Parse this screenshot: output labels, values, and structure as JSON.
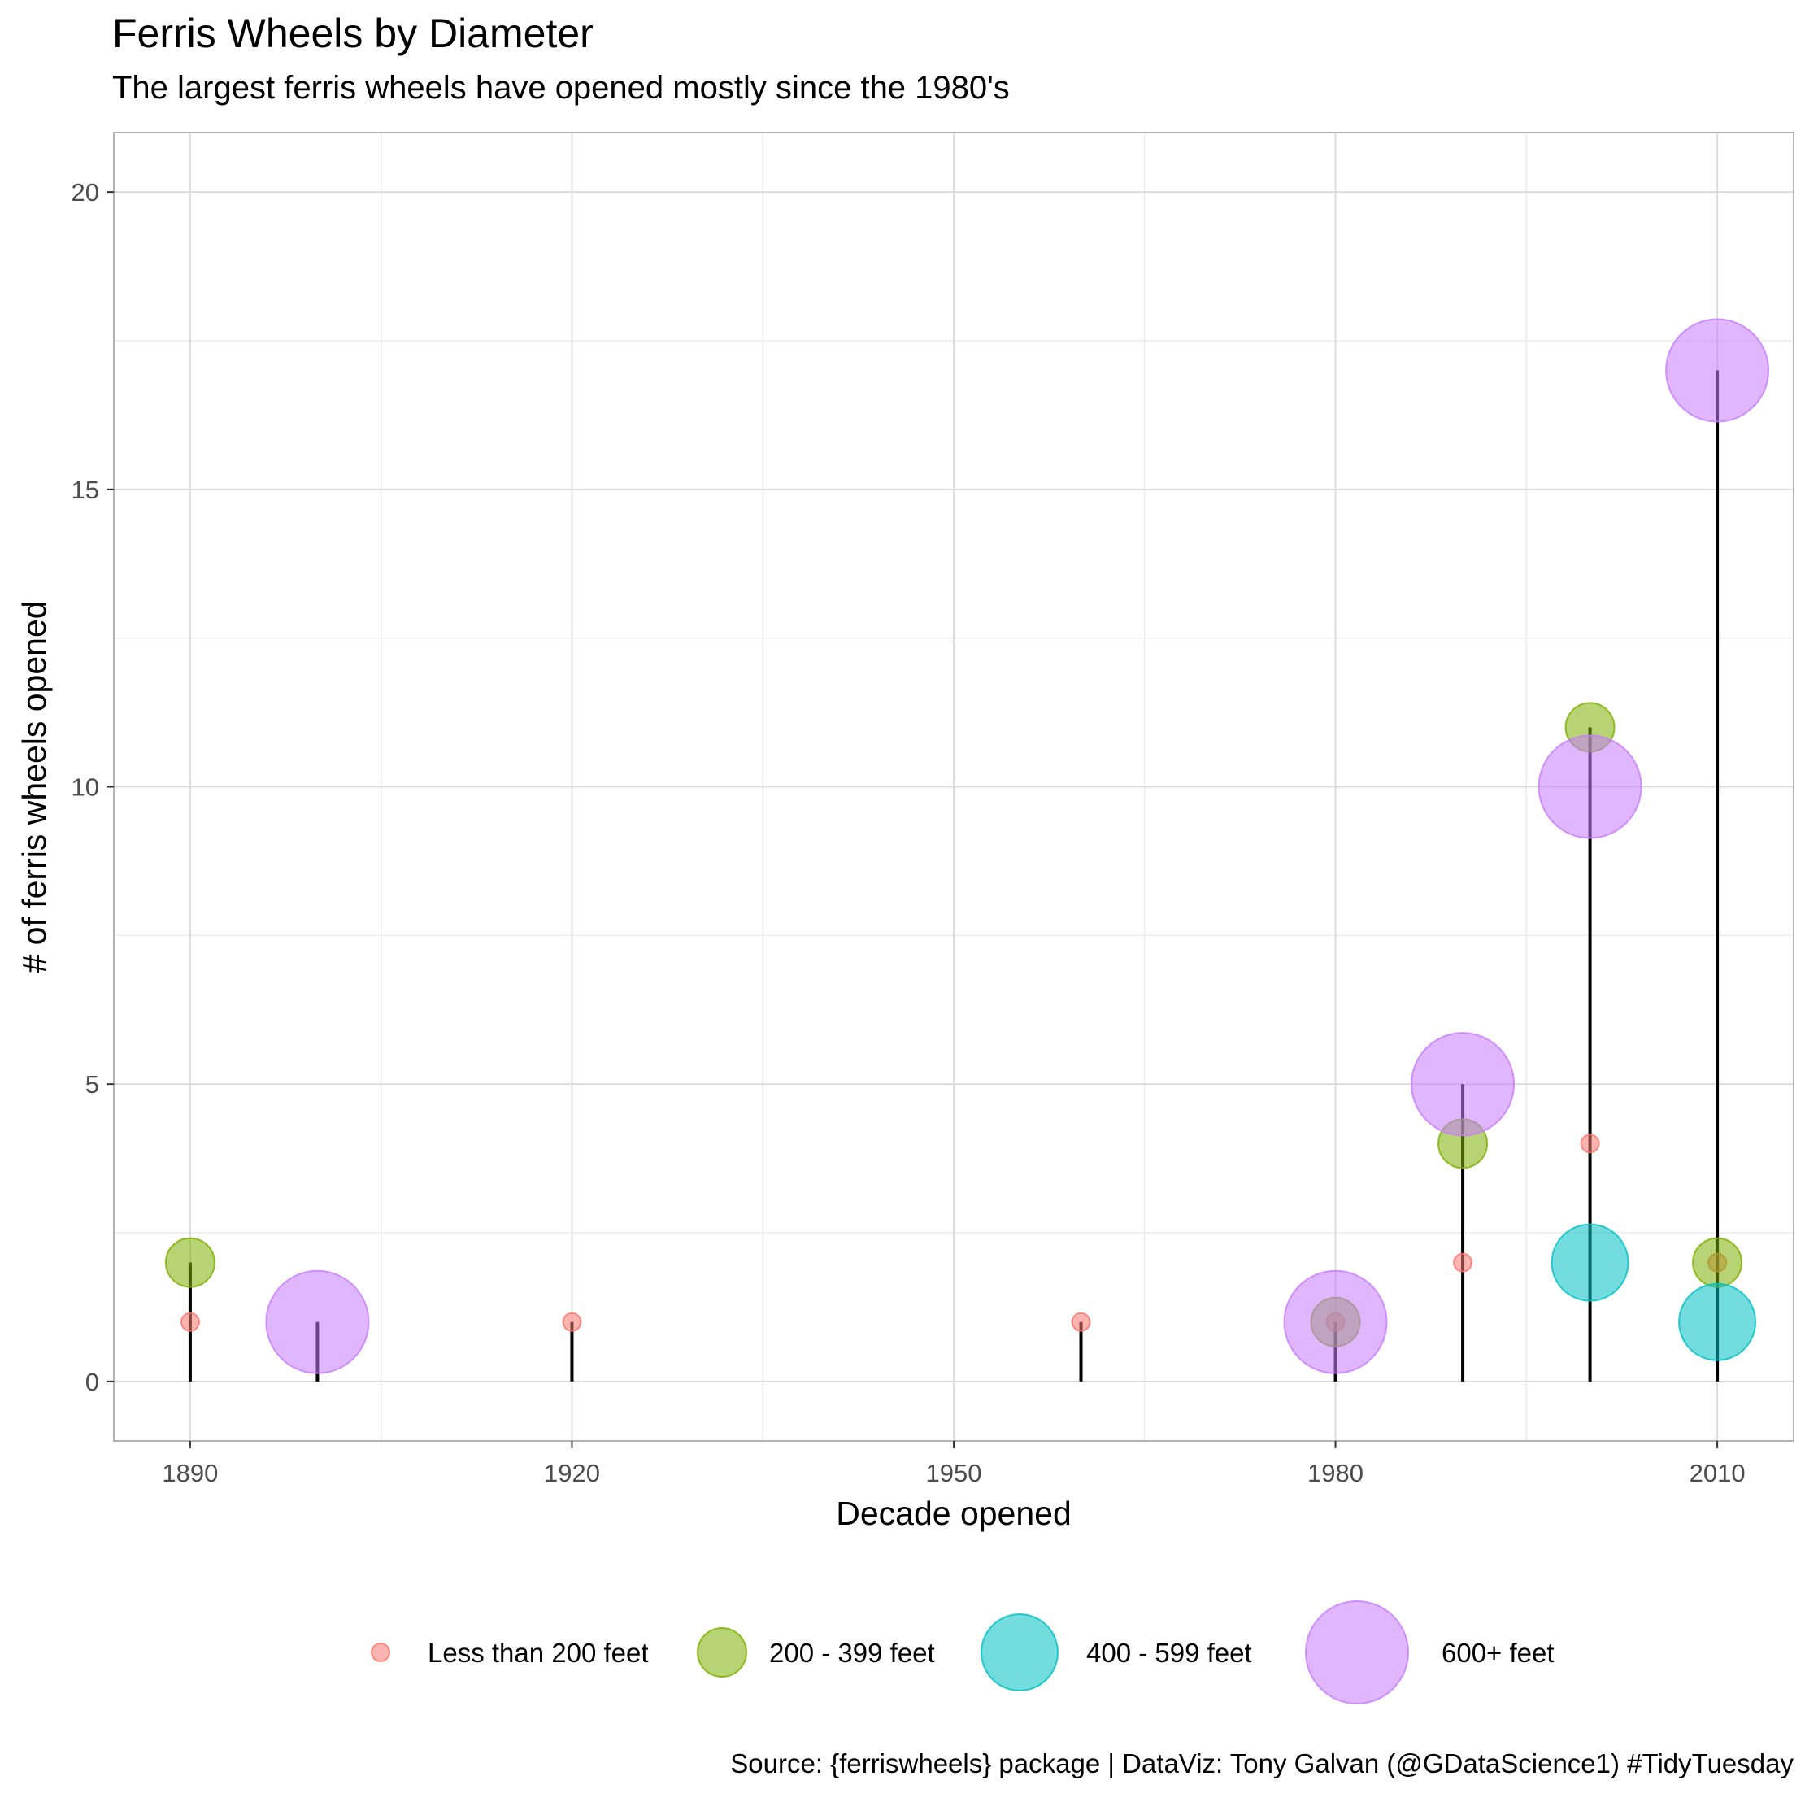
{
  "title": "Ferris Wheels by Diameter",
  "subtitle": "The largest ferris wheels have opened mostly since the 1980's",
  "caption": "Source: {ferriswheels} package  |  DataViz: Tony Galvan (@GDataScience1) #TidyTuesday",
  "colors": {
    "Less than 200 feet": "#F8766D",
    "200 - 399 feet": "#7CAE00",
    "400 - 599 feet": "#00BFC4",
    "600+ feet": "#C77CFF",
    "stem": "#000000",
    "grid_major": "#dcdcdc",
    "grid_minor": "#ececec",
    "panel_border": "#b3b3b3"
  },
  "chart_data": {
    "type": "scatter",
    "title": "Ferris Wheels by Diameter",
    "subtitle": "The largest ferris wheels have opened mostly since the 1980's",
    "xlabel": "Decade opened",
    "ylabel": "# of ferris wheels opened",
    "xlim": [
      1884,
      2016
    ],
    "ylim": [
      -1,
      21
    ],
    "x_ticks": [
      1890,
      1920,
      1950,
      1980,
      2010
    ],
    "y_ticks": [
      0,
      5,
      10,
      15,
      20
    ],
    "grid": true,
    "legend_position": "bottom",
    "legend": [
      "Less than 200 feet",
      "200 - 399 feet",
      "400 - 599 feet",
      "600+ feet"
    ],
    "stems": [
      {
        "x": 1890,
        "y": 2
      },
      {
        "x": 1900,
        "y": 1
      },
      {
        "x": 1920,
        "y": 1
      },
      {
        "x": 1960,
        "y": 1
      },
      {
        "x": 1980,
        "y": 1
      },
      {
        "x": 1990,
        "y": 5
      },
      {
        "x": 2000,
        "y": 11
      },
      {
        "x": 2010,
        "y": 17
      }
    ],
    "series": [
      {
        "name": "Less than 200 feet",
        "points": [
          {
            "x": 1890,
            "y": 1
          },
          {
            "x": 1920,
            "y": 1
          },
          {
            "x": 1960,
            "y": 1
          },
          {
            "x": 1980,
            "y": 1
          },
          {
            "x": 1990,
            "y": 2
          },
          {
            "x": 2000,
            "y": 4
          },
          {
            "x": 2010,
            "y": 2
          }
        ]
      },
      {
        "name": "200 - 399 feet",
        "points": [
          {
            "x": 1890,
            "y": 2
          },
          {
            "x": 1980,
            "y": 1
          },
          {
            "x": 1990,
            "y": 4
          },
          {
            "x": 2000,
            "y": 11
          },
          {
            "x": 2010,
            "y": 2
          }
        ]
      },
      {
        "name": "400 - 599 feet",
        "points": [
          {
            "x": 2000,
            "y": 2
          },
          {
            "x": 2010,
            "y": 1
          }
        ]
      },
      {
        "name": "600+ feet",
        "points": [
          {
            "x": 1900,
            "y": 1
          },
          {
            "x": 1980,
            "y": 1
          },
          {
            "x": 1990,
            "y": 5
          },
          {
            "x": 2000,
            "y": 10
          },
          {
            "x": 2010,
            "y": 17
          }
        ]
      }
    ]
  }
}
